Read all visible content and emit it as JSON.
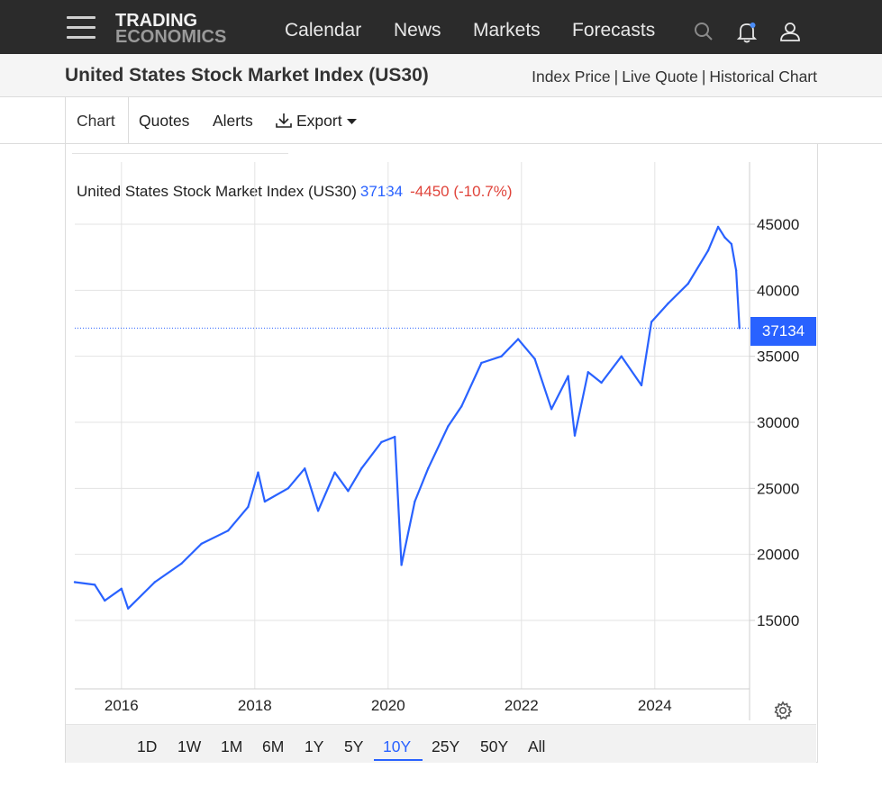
{
  "header": {
    "logo_line1": "TRADING",
    "logo_line2": "ECONOMICS",
    "nav": [
      "Calendar",
      "News",
      "Markets",
      "Forecasts"
    ],
    "icons": [
      "menu-icon",
      "search-icon",
      "bell-icon",
      "user-icon"
    ]
  },
  "page": {
    "title": "United States Stock Market Index (US30)",
    "links": [
      "Index Price",
      "Live Quote",
      "Historical Chart"
    ],
    "link_separator": "|"
  },
  "tabs": {
    "chart": "Chart",
    "quotes": "Quotes",
    "alerts": "Alerts",
    "export": "Export"
  },
  "legend": {
    "name": "United States Stock Market Index (US30)",
    "value": "37134",
    "change": "-4450 (-10.7%)"
  },
  "price_tag": "37134",
  "ranges": {
    "buttons": [
      "1D",
      "1W",
      "1M",
      "6M",
      "1Y",
      "5Y",
      "10Y",
      "25Y",
      "50Y",
      "All"
    ],
    "selected": "10Y"
  },
  "colors": {
    "line": "#2962ff",
    "change_negative": "#e0443b",
    "topbar": "#2b2b2b"
  },
  "chart_data": {
    "type": "line",
    "series": [
      {
        "name": "United States Stock Market Index (US30)",
        "x": [
          2015.3,
          2015.6,
          2015.75,
          2016.0,
          2016.1,
          2016.5,
          2016.9,
          2017.2,
          2017.6,
          2017.9,
          2018.05,
          2018.15,
          2018.5,
          2018.75,
          2018.95,
          2019.2,
          2019.4,
          2019.6,
          2019.9,
          2020.1,
          2020.2,
          2020.4,
          2020.6,
          2020.9,
          2021.1,
          2021.4,
          2021.7,
          2021.95,
          2022.2,
          2022.45,
          2022.7,
          2022.8,
          2023.0,
          2023.2,
          2023.5,
          2023.8,
          2023.95,
          2024.2,
          2024.5,
          2024.8,
          2024.95,
          2025.05,
          2025.15,
          2025.22,
          2025.27
        ],
        "y": [
          17900,
          17700,
          16500,
          17400,
          15900,
          17900,
          19300,
          20800,
          21800,
          23600,
          26200,
          24000,
          25000,
          26500,
          23300,
          26200,
          24800,
          26500,
          28500,
          28900,
          19200,
          24000,
          26500,
          29700,
          31200,
          34500,
          35000,
          36300,
          34800,
          31000,
          33500,
          29000,
          33800,
          33000,
          35000,
          32800,
          37600,
          39000,
          40500,
          43000,
          44800,
          44000,
          43500,
          41500,
          37134
        ]
      }
    ],
    "x_ticks": [
      "2016",
      "2018",
      "2020",
      "2022",
      "2024"
    ],
    "y_ticks": [
      "15000",
      "20000",
      "25000",
      "30000",
      "35000",
      "40000",
      "45000"
    ],
    "xlim": [
      2015.3,
      2025.3
    ],
    "ylim": [
      12000,
      48000
    ],
    "last_value": 37134,
    "grid": true,
    "y_axis_side": "right"
  }
}
